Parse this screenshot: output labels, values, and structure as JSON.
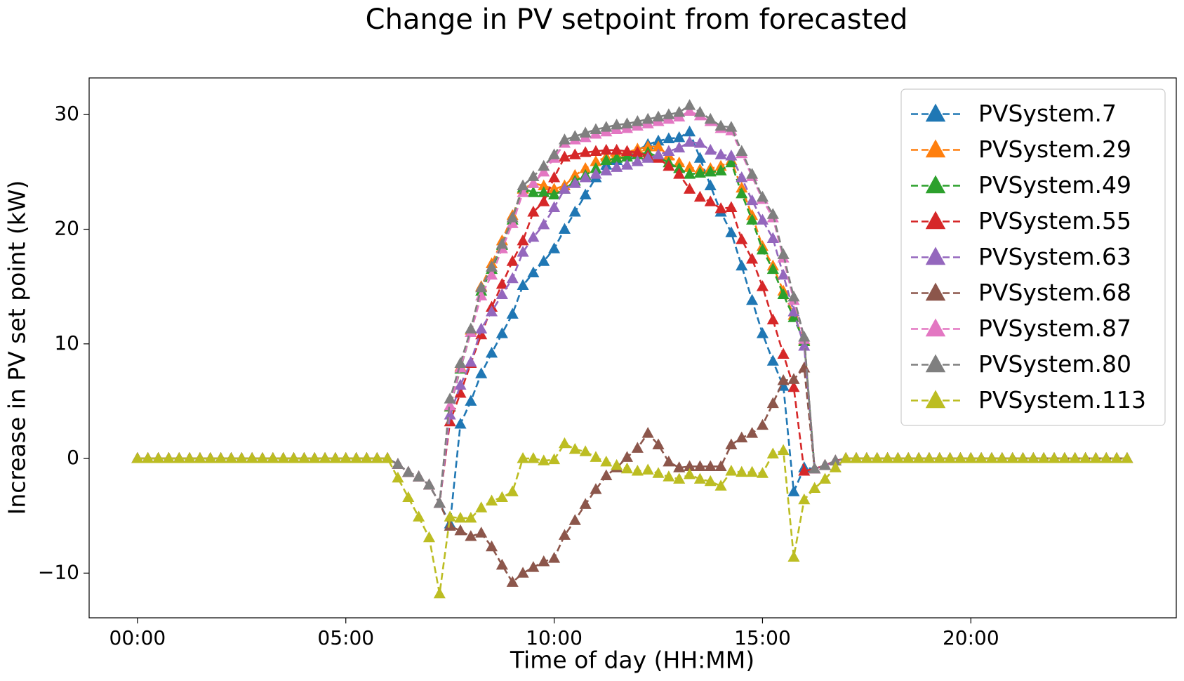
{
  "chart_data": {
    "type": "line",
    "title": "Change in PV setpoint from forecasted",
    "x_label": "Time of day (HH:MM)",
    "y_label": "Increase in PV set point (kW)",
    "x": [
      0,
      0.25,
      0.5,
      0.75,
      1,
      1.25,
      1.5,
      1.75,
      2,
      2.25,
      2.5,
      2.75,
      3,
      3.25,
      3.5,
      3.75,
      4,
      4.25,
      4.5,
      4.75,
      5,
      5.25,
      5.5,
      5.75,
      6,
      6.25,
      6.5,
      6.75,
      7,
      7.25,
      7.5,
      7.75,
      8,
      8.25,
      8.5,
      8.75,
      9,
      9.25,
      9.5,
      9.75,
      10,
      10.25,
      10.5,
      10.75,
      11,
      11.25,
      11.5,
      11.75,
      12,
      12.25,
      12.5,
      12.75,
      13,
      13.25,
      13.5,
      13.75,
      14,
      14.25,
      14.5,
      14.75,
      15,
      15.25,
      15.5,
      15.75,
      16,
      16.25,
      16.5,
      16.75,
      17,
      17.25,
      17.5,
      17.75,
      18,
      18.25,
      18.5,
      18.75,
      19,
      19.25,
      19.5,
      19.75,
      20,
      20.25,
      20.5,
      20.75,
      21,
      21.25,
      21.5,
      21.75,
      22,
      22.25,
      22.5,
      22.75,
      23,
      23.25,
      23.5,
      23.75
    ],
    "xlim": [
      -1.16,
      24.93
    ],
    "xticks": [
      {
        "value": 0,
        "label": "00:00"
      },
      {
        "value": 5,
        "label": "05:00"
      },
      {
        "value": 10,
        "label": "10:00"
      },
      {
        "value": 15,
        "label": "15:00"
      },
      {
        "value": 20,
        "label": "20:00"
      }
    ],
    "ylim": [
      -13.9,
      33.2
    ],
    "yticks": [
      {
        "value": -10,
        "label": "−10"
      },
      0,
      10,
      20,
      30
    ],
    "grid": false,
    "legend": "upper right",
    "marker": "triangle",
    "line_style": "dashed",
    "series": [
      {
        "name": "PVSystem.7",
        "color": "#1f77b4",
        "values": [
          0,
          0,
          0,
          0,
          0,
          0,
          0,
          0,
          0,
          0,
          0,
          0,
          0,
          0,
          0,
          0,
          0,
          0,
          0,
          0,
          0,
          0,
          0,
          0,
          0,
          -0.5,
          -1.2,
          -1.6,
          -2.3,
          -3.9,
          -5.7,
          3.0,
          5.0,
          7.4,
          9.2,
          10.9,
          12.6,
          15.1,
          16.2,
          17.2,
          18.3,
          20.0,
          21.5,
          23.0,
          24.5,
          25.6,
          26.0,
          26.5,
          26.9,
          27.4,
          27.7,
          27.9,
          28.0,
          28.5,
          26.2,
          23.8,
          21.5,
          19.7,
          16.8,
          13.8,
          10.9,
          8.5,
          6.3,
          -2.9,
          -0.8,
          -0.9,
          -0.6,
          -0.2,
          0,
          0,
          0,
          0,
          0,
          0,
          0,
          0,
          0,
          0,
          0,
          0,
          0,
          0,
          0,
          0,
          0,
          0,
          0,
          0,
          0,
          0,
          0,
          0,
          0,
          0,
          0,
          0
        ]
      },
      {
        "name": "PVSystem.29",
        "color": "#ff7f0e",
        "values": [
          0,
          0,
          0,
          0,
          0,
          0,
          0,
          0,
          0,
          0,
          0,
          0,
          0,
          0,
          0,
          0,
          0,
          0,
          0,
          0,
          0,
          0,
          0,
          0,
          0,
          -0.5,
          -1.2,
          -1.6,
          -2.3,
          -3.9,
          4.5,
          8.0,
          11.2,
          15.0,
          17.0,
          19.0,
          21.2,
          23.5,
          24.0,
          23.8,
          23.5,
          23.8,
          24.7,
          25.3,
          25.9,
          26.3,
          26.5,
          26.7,
          27.0,
          27.2,
          27.2,
          26.4,
          25.8,
          25.4,
          25.2,
          25.3,
          25.5,
          26.0,
          23.6,
          21.2,
          18.5,
          16.8,
          14.6,
          12.5,
          10.3,
          -0.9,
          -0.6,
          -0.2,
          0,
          0,
          0,
          0,
          0,
          0,
          0,
          0,
          0,
          0,
          0,
          0,
          0,
          0,
          0,
          0,
          0,
          0,
          0,
          0,
          0,
          0,
          0,
          0,
          0,
          0,
          0,
          0
        ]
      },
      {
        "name": "PVSystem.49",
        "color": "#2ca02c",
        "values": [
          0,
          0,
          0,
          0,
          0,
          0,
          0,
          0,
          0,
          0,
          0,
          0,
          0,
          0,
          0,
          0,
          0,
          0,
          0,
          0,
          0,
          0,
          0,
          0,
          0,
          -0.5,
          -1.2,
          -1.6,
          -2.3,
          -3.9,
          4.5,
          7.8,
          11.0,
          14.6,
          16.5,
          18.6,
          20.8,
          23.6,
          23.2,
          23.2,
          23.0,
          23.5,
          24.2,
          24.7,
          25.3,
          26.0,
          26.2,
          26.3,
          26.5,
          26.7,
          26.3,
          25.8,
          25.3,
          24.8,
          24.9,
          25.0,
          25.1,
          25.8,
          23.1,
          20.8,
          18.2,
          16.5,
          14.3,
          12.3,
          10.2,
          -0.9,
          -0.6,
          -0.2,
          0,
          0,
          0,
          0,
          0,
          0,
          0,
          0,
          0,
          0,
          0,
          0,
          0,
          0,
          0,
          0,
          0,
          0,
          0,
          0,
          0,
          0,
          0,
          0,
          0,
          0,
          0,
          0
        ]
      },
      {
        "name": "PVSystem.55",
        "color": "#d62728",
        "values": [
          0,
          0,
          0,
          0,
          0,
          0,
          0,
          0,
          0,
          0,
          0,
          0,
          0,
          0,
          0,
          0,
          0,
          0,
          0,
          0,
          0,
          0,
          0,
          0,
          0,
          -0.5,
          -1.2,
          -1.6,
          -2.3,
          -3.9,
          3.2,
          5.7,
          8.3,
          10.8,
          13.2,
          15.2,
          17.2,
          19.0,
          21.5,
          22.4,
          24.5,
          26.3,
          26.5,
          26.7,
          26.8,
          26.9,
          26.9,
          26.8,
          26.7,
          26.4,
          26.2,
          25.5,
          24.8,
          23.5,
          22.8,
          22.4,
          21.8,
          21.9,
          19.1,
          17.4,
          15.0,
          12.1,
          9.1,
          6.2,
          -1.1,
          -0.9,
          -0.6,
          -0.2,
          0,
          0,
          0,
          0,
          0,
          0,
          0,
          0,
          0,
          0,
          0,
          0,
          0,
          0,
          0,
          0,
          0,
          0,
          0,
          0,
          0,
          0,
          0,
          0,
          0,
          0,
          0,
          0
        ]
      },
      {
        "name": "PVSystem.63",
        "color": "#9467bd",
        "values": [
          0,
          0,
          0,
          0,
          0,
          0,
          0,
          0,
          0,
          0,
          0,
          0,
          0,
          0,
          0,
          0,
          0,
          0,
          0,
          0,
          0,
          0,
          0,
          0,
          0,
          -0.5,
          -1.2,
          -1.6,
          -2.3,
          -3.9,
          3.8,
          6.4,
          8.4,
          11.3,
          12.8,
          14.3,
          15.7,
          18.0,
          19.3,
          20.4,
          21.9,
          23.5,
          24.0,
          24.5,
          24.8,
          25.1,
          25.4,
          25.6,
          25.9,
          26.2,
          26.5,
          26.8,
          27.1,
          27.6,
          27.5,
          26.9,
          26.5,
          26.4,
          24.5,
          22.5,
          20.8,
          19.2,
          16.0,
          12.8,
          9.8,
          -0.9,
          -0.6,
          -0.2,
          0,
          0,
          0,
          0,
          0,
          0,
          0,
          0,
          0,
          0,
          0,
          0,
          0,
          0,
          0,
          0,
          0,
          0,
          0,
          0,
          0,
          0,
          0,
          0,
          0,
          0,
          0,
          0
        ]
      },
      {
        "name": "PVSystem.68",
        "color": "#8c564b",
        "values": [
          0,
          0,
          0,
          0,
          0,
          0,
          0,
          0,
          0,
          0,
          0,
          0,
          0,
          0,
          0,
          0,
          0,
          0,
          0,
          0,
          0,
          0,
          0,
          0,
          0,
          -0.5,
          -1.2,
          -1.6,
          -2.3,
          -3.9,
          -5.9,
          -6.3,
          -6.8,
          -6.5,
          -7.7,
          -9.3,
          -10.8,
          -10.0,
          -9.5,
          -9.0,
          -8.7,
          -6.7,
          -5.4,
          -4.0,
          -2.7,
          -1.5,
          -0.8,
          0.1,
          0.9,
          2.2,
          1.2,
          -0.3,
          -0.8,
          -0.7,
          -0.7,
          -0.7,
          -0.7,
          1.2,
          1.8,
          2.2,
          2.9,
          4.8,
          6.8,
          6.9,
          7.9,
          -0.9,
          -0.6,
          -0.2,
          0,
          0,
          0,
          0,
          0,
          0,
          0,
          0,
          0,
          0,
          0,
          0,
          0,
          0,
          0,
          0,
          0,
          0,
          0,
          0,
          0,
          0,
          0,
          0,
          0,
          0,
          0,
          0
        ]
      },
      {
        "name": "PVSystem.87",
        "color": "#e377c2",
        "values": [
          0,
          0,
          0,
          0,
          0,
          0,
          0,
          0,
          0,
          0,
          0,
          0,
          0,
          0,
          0,
          0,
          0,
          0,
          0,
          0,
          0,
          0,
          0,
          0,
          0,
          -0.5,
          -1.2,
          -1.6,
          -2.3,
          -3.9,
          4.6,
          7.9,
          11.0,
          14.2,
          16.0,
          18.3,
          20.5,
          23.2,
          24.0,
          25.0,
          26.2,
          27.5,
          27.8,
          28.0,
          28.3,
          28.5,
          28.7,
          28.8,
          29.0,
          29.2,
          29.4,
          29.6,
          29.8,
          30.3,
          29.9,
          29.4,
          28.8,
          28.6,
          26.6,
          24.6,
          22.6,
          21.0,
          17.5,
          13.8,
          10.4,
          -0.9,
          -0.6,
          -0.2,
          0,
          0,
          0,
          0,
          0,
          0,
          0,
          0,
          0,
          0,
          0,
          0,
          0,
          0,
          0,
          0,
          0,
          0,
          0,
          0,
          0,
          0,
          0,
          0,
          0,
          0,
          0,
          0
        ]
      },
      {
        "name": "PVSystem.80",
        "color": "#7f7f7f",
        "values": [
          0,
          0,
          0,
          0,
          0,
          0,
          0,
          0,
          0,
          0,
          0,
          0,
          0,
          0,
          0,
          0,
          0,
          0,
          0,
          0,
          0,
          0,
          0,
          0,
          0,
          -0.5,
          -1.2,
          -1.6,
          -2.3,
          -3.9,
          5.2,
          8.3,
          11.3,
          14.9,
          16.7,
          18.7,
          21.0,
          23.8,
          24.6,
          25.5,
          26.5,
          27.8,
          28.1,
          28.4,
          28.7,
          28.9,
          29.1,
          29.2,
          29.4,
          29.6,
          29.8,
          30.0,
          30.2,
          30.8,
          30.2,
          29.6,
          29.0,
          28.9,
          26.8,
          24.8,
          22.8,
          21.3,
          17.8,
          14.1,
          10.6,
          -0.9,
          -0.6,
          -0.2,
          0,
          0,
          0,
          0,
          0,
          0,
          0,
          0,
          0,
          0,
          0,
          0,
          0,
          0,
          0,
          0,
          0,
          0,
          0,
          0,
          0,
          0,
          0,
          0,
          0,
          0,
          0,
          0
        ]
      },
      {
        "name": "PVSystem.113",
        "color": "#bcbd22",
        "values": [
          0,
          0,
          0,
          0,
          0,
          0,
          0,
          0,
          0,
          0,
          0,
          0,
          0,
          0,
          0,
          0,
          0,
          0,
          0,
          0,
          0,
          0,
          0,
          0,
          0,
          -1.7,
          -3.4,
          -5.1,
          -6.9,
          -11.8,
          -5.1,
          -5.2,
          -5.2,
          -4.3,
          -3.7,
          -3.4,
          -2.9,
          0.0,
          0.0,
          -0.2,
          -0.1,
          1.3,
          0.8,
          0.6,
          0.1,
          -0.3,
          -0.6,
          -0.9,
          -1.1,
          -1.0,
          -1.3,
          -1.6,
          -1.8,
          -1.4,
          -1.8,
          -2.0,
          -2.4,
          -1.1,
          -1.2,
          -1.2,
          -1.3,
          0.4,
          0.7,
          -8.6,
          -3.6,
          -2.6,
          -1.8,
          -0.8,
          0,
          0,
          0,
          0,
          0,
          0,
          0,
          0,
          0,
          0,
          0,
          0,
          0,
          0,
          0,
          0,
          0,
          0,
          0,
          0,
          0,
          0,
          0,
          0,
          0,
          0,
          0,
          0
        ]
      }
    ]
  }
}
